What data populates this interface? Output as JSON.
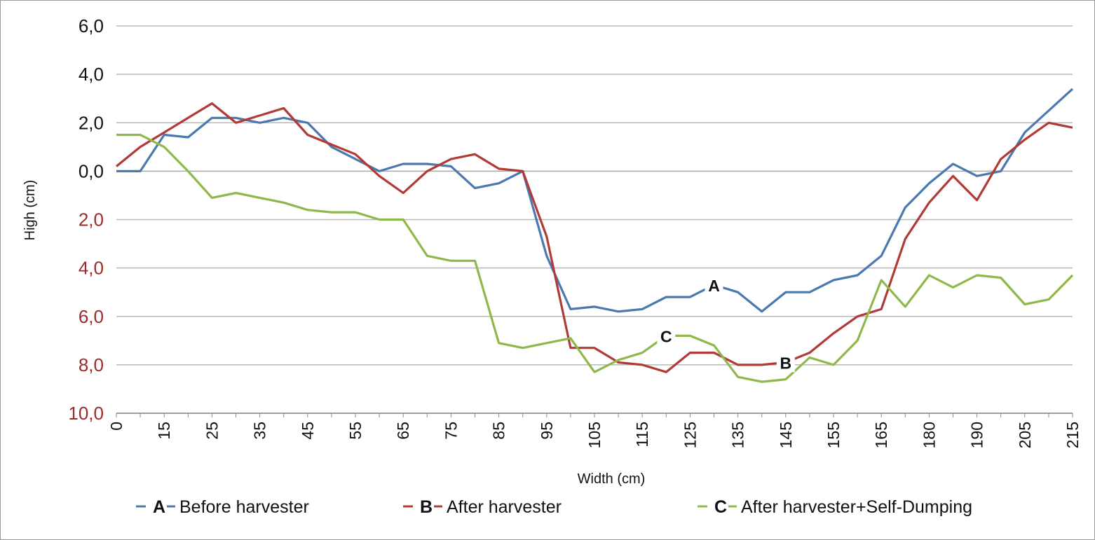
{
  "chart_data": {
    "type": "line",
    "xlabel": "Width  (cm)",
    "ylabel": "High  (cm)",
    "ylim": [
      -10,
      6
    ],
    "y_ticks": [
      {
        "value": 6,
        "label": "6,0",
        "color": "#111111"
      },
      {
        "value": 4,
        "label": "4,0",
        "color": "#111111"
      },
      {
        "value": 2,
        "label": "2,0",
        "color": "#111111"
      },
      {
        "value": 0,
        "label": "0,0",
        "color": "#111111"
      },
      {
        "value": -2,
        "label": "2,0",
        "color": "#9b2a2a"
      },
      {
        "value": -4,
        "label": "4,0",
        "color": "#9b2a2a"
      },
      {
        "value": -6,
        "label": "6,0",
        "color": "#9b2a2a"
      },
      {
        "value": -8,
        "label": "8,0",
        "color": "#9b2a2a"
      },
      {
        "value": -10,
        "label": "10,0",
        "color": "#9b2a2a"
      }
    ],
    "x_tick_labels": [
      "0",
      "15",
      "25",
      "35",
      "45",
      "55",
      "65",
      "75",
      "85",
      "95",
      "105",
      "115",
      "125",
      "135",
      "145",
      "155",
      "165",
      "180",
      "190",
      "205",
      "215"
    ],
    "grid": "horizontal",
    "legend_position": "bottom",
    "series": [
      {
        "id": "A",
        "letter": "A",
        "legend_label": "Before harvester",
        "color": "#4a78b0",
        "values": [
          0,
          0,
          1.5,
          1.4,
          2.2,
          2.2,
          2.0,
          2.2,
          2.0,
          1.0,
          0.5,
          0.0,
          0.3,
          0.3,
          0.2,
          -0.7,
          -0.5,
          0.0,
          -3.5,
          -5.7,
          -5.6,
          -5.8,
          -5.7,
          -5.2,
          -5.2,
          -4.7,
          -5.0,
          -5.8,
          -5.0,
          -5.0,
          -4.5,
          -4.3,
          -3.5,
          -1.5,
          -0.5,
          0.3,
          -0.2,
          0.0,
          1.6,
          2.5,
          3.4
        ],
        "curve_label": {
          "text": "A",
          "at_index": 25
        }
      },
      {
        "id": "B",
        "letter": "B",
        "legend_label": "After harvester",
        "color": "#b23a36",
        "values": [
          0.2,
          1.0,
          1.6,
          2.2,
          2.8,
          2.0,
          2.3,
          2.6,
          1.5,
          1.1,
          0.7,
          -0.2,
          -0.9,
          0.0,
          0.5,
          0.7,
          0.1,
          0.0,
          -2.7,
          -7.3,
          -7.3,
          -7.9,
          -8.0,
          -8.3,
          -7.5,
          -7.5,
          -8.0,
          -8.0,
          -7.9,
          -7.5,
          -6.7,
          -6.0,
          -5.7,
          -2.8,
          -1.3,
          -0.2,
          -1.2,
          0.5,
          1.3,
          2.0,
          1.8
        ],
        "curve_label": {
          "text": "B",
          "at_index": 28
        }
      },
      {
        "id": "C",
        "letter": "C",
        "legend_label": "After harvester+Self-Dumping",
        "color": "#8fb84a",
        "values": [
          1.5,
          1.5,
          1.0,
          0.0,
          -1.1,
          -0.9,
          -1.1,
          -1.3,
          -1.6,
          -1.7,
          -1.7,
          -2.0,
          -2.0,
          -3.5,
          -3.7,
          -3.7,
          -7.1,
          -7.3,
          -7.1,
          -6.9,
          -8.3,
          -7.8,
          -7.5,
          -6.8,
          -6.8,
          -7.2,
          -8.5,
          -8.7,
          -8.6,
          -7.7,
          -8.0,
          -7.0,
          -4.5,
          -5.6,
          -4.3,
          -4.8,
          -4.3,
          -4.4,
          -5.5,
          -5.3,
          -4.3
        ],
        "curve_label": {
          "text": "C",
          "at_index": 23
        }
      }
    ]
  }
}
